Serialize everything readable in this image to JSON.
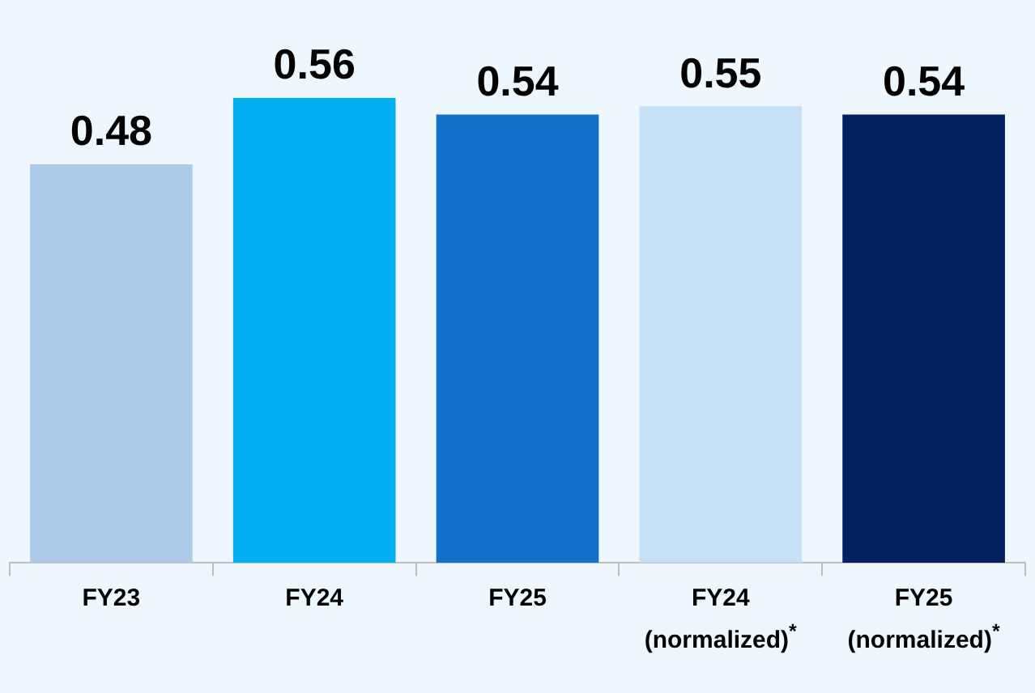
{
  "chart_data": {
    "type": "bar",
    "categories": [
      "FY23",
      "FY24",
      "FY25",
      "FY24 (normalized)$^{*}$",
      "FY25 (normalized)$^{*}$"
    ],
    "values": [
      0.48,
      0.56,
      0.54,
      0.55,
      0.54
    ],
    "colors": [
      "#aecbeb",
      "#00b0f0",
      "#1170c8",
      "#c6e0f8",
      "#002060"
    ],
    "data_labels": true,
    "grid": false,
    "legend": false
  }
}
